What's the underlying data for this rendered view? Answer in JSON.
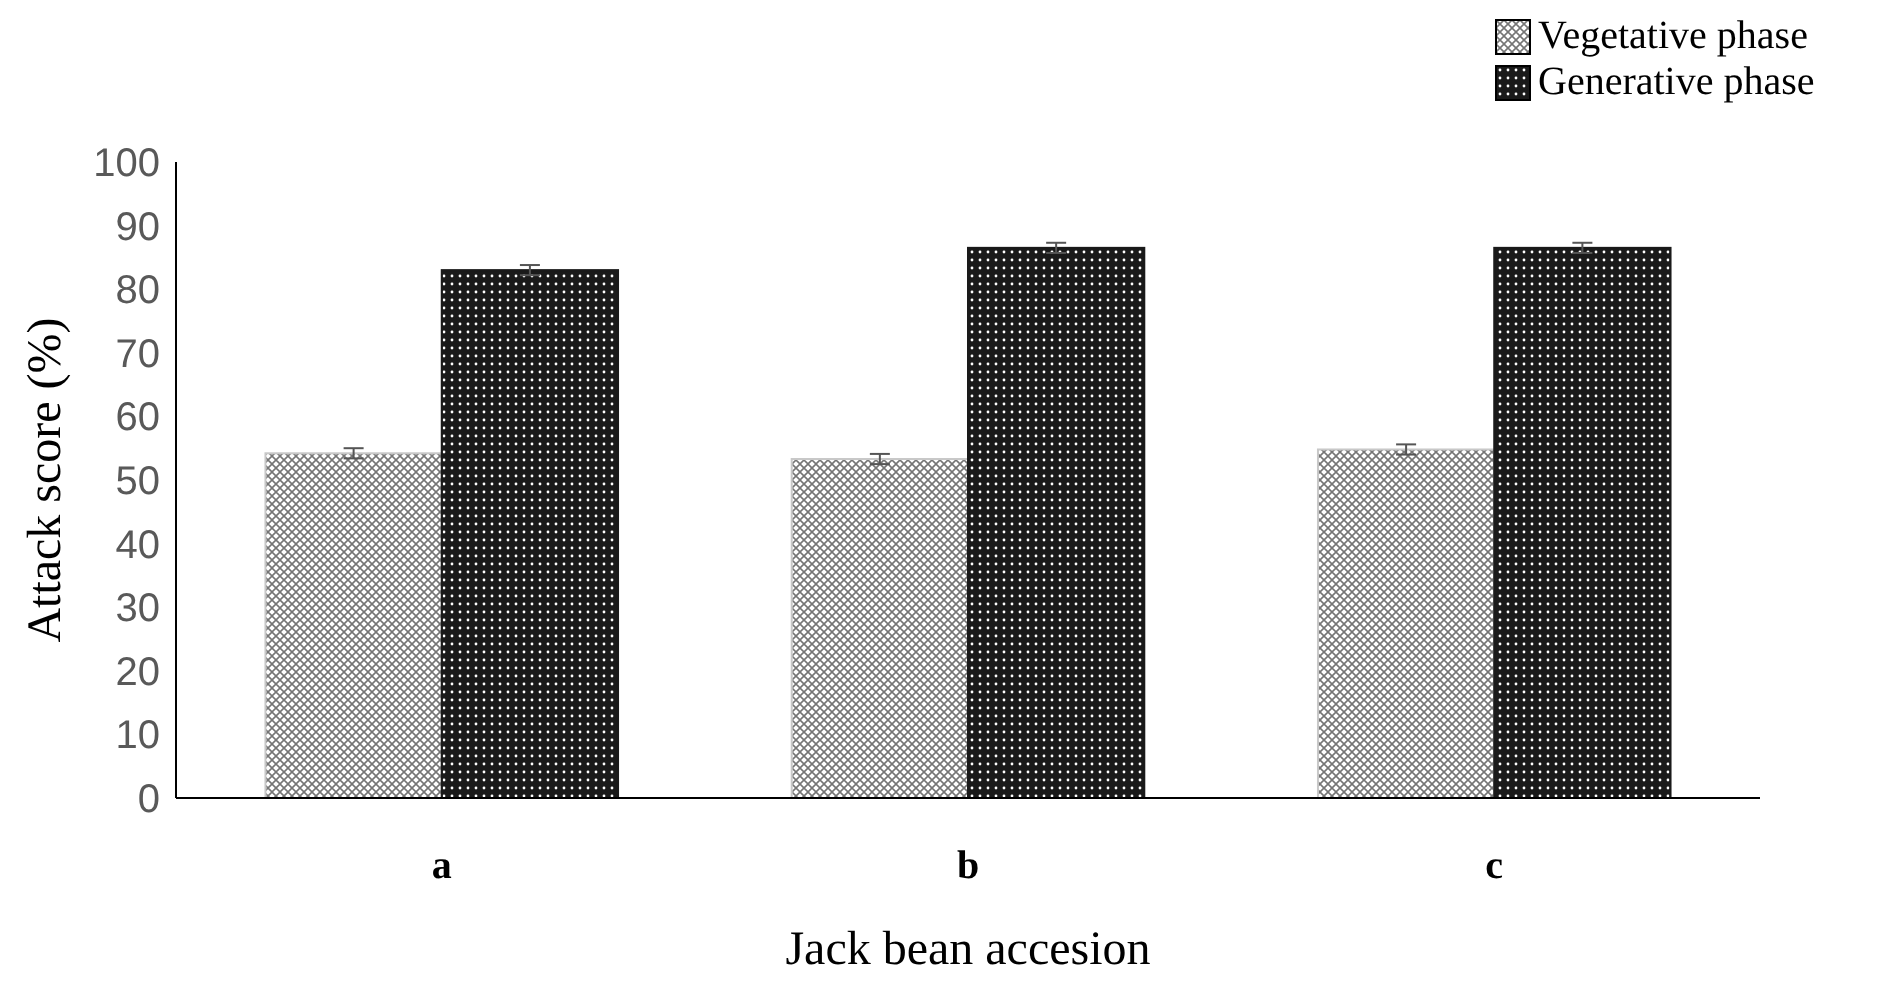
{
  "chart_data": {
    "type": "bar",
    "xlabel": "Jack bean accesion",
    "ylabel": "Attack score (%)",
    "categories": [
      "a",
      "b",
      "c"
    ],
    "series": [
      {
        "name": "Vegetative phase",
        "color": "#c8c8c8",
        "values": [
          54.2,
          53.3,
          54.8
        ],
        "errors": [
          0.8,
          0.8,
          0.8
        ]
      },
      {
        "name": "Generative phase",
        "color": "#1a1a1a",
        "values": [
          83,
          86.5,
          86.5
        ],
        "errors": [
          0.8,
          0.8,
          0.8
        ]
      }
    ],
    "ylim": [
      0,
      100
    ],
    "yticks": [
      0,
      10,
      20,
      30,
      40,
      50,
      60,
      70,
      80,
      90,
      100
    ],
    "grid": false,
    "legend": "top right"
  }
}
